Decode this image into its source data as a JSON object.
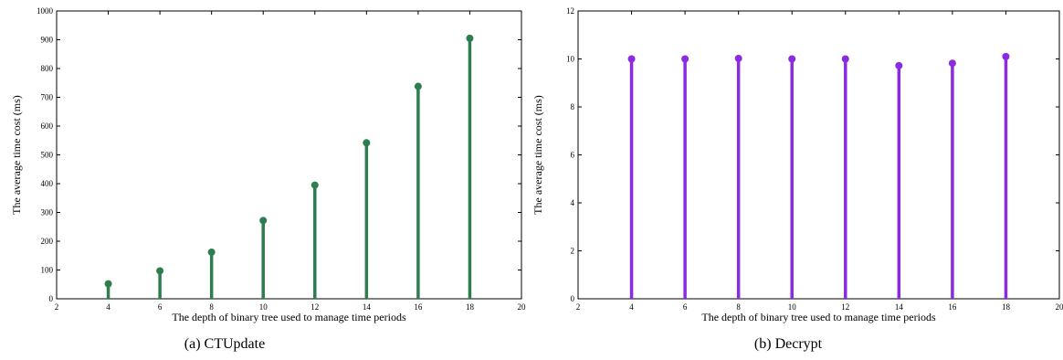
{
  "chart_data": [
    {
      "type": "stem",
      "caption": "(a) CTUpdate",
      "xlabel": "The depth of binary tree used to manage time periods",
      "ylabel": "The average time cost (ms)",
      "xlim": [
        2,
        20
      ],
      "ylim": [
        0,
        1000
      ],
      "x_ticks": [
        2,
        4,
        6,
        8,
        10,
        12,
        14,
        16,
        18,
        20
      ],
      "y_ticks": [
        0,
        100,
        200,
        300,
        400,
        500,
        600,
        700,
        800,
        900,
        1000
      ],
      "series": [
        {
          "x": [
            4,
            6,
            8,
            10,
            12,
            14,
            16,
            18
          ],
          "y": [
            52,
            97,
            162,
            272,
            395,
            542,
            738,
            905
          ],
          "color": "#2e7d4f"
        }
      ],
      "grid": false
    },
    {
      "type": "stem",
      "caption": "(b) Decrypt",
      "xlabel": "The depth of binary tree used to manage time periods",
      "ylabel": "The average time cost (ms)",
      "xlim": [
        2,
        20
      ],
      "ylim": [
        0,
        12
      ],
      "x_ticks": [
        2,
        4,
        6,
        8,
        10,
        12,
        14,
        16,
        18,
        20
      ],
      "y_ticks": [
        0,
        2,
        4,
        6,
        8,
        10,
        12
      ],
      "series": [
        {
          "x": [
            4,
            6,
            8,
            10,
            12,
            14,
            16,
            18
          ],
          "y": [
            10.0,
            10.0,
            10.02,
            10.0,
            10.0,
            9.72,
            9.82,
            10.1
          ],
          "color": "#8a2be2"
        }
      ],
      "grid": false
    }
  ]
}
